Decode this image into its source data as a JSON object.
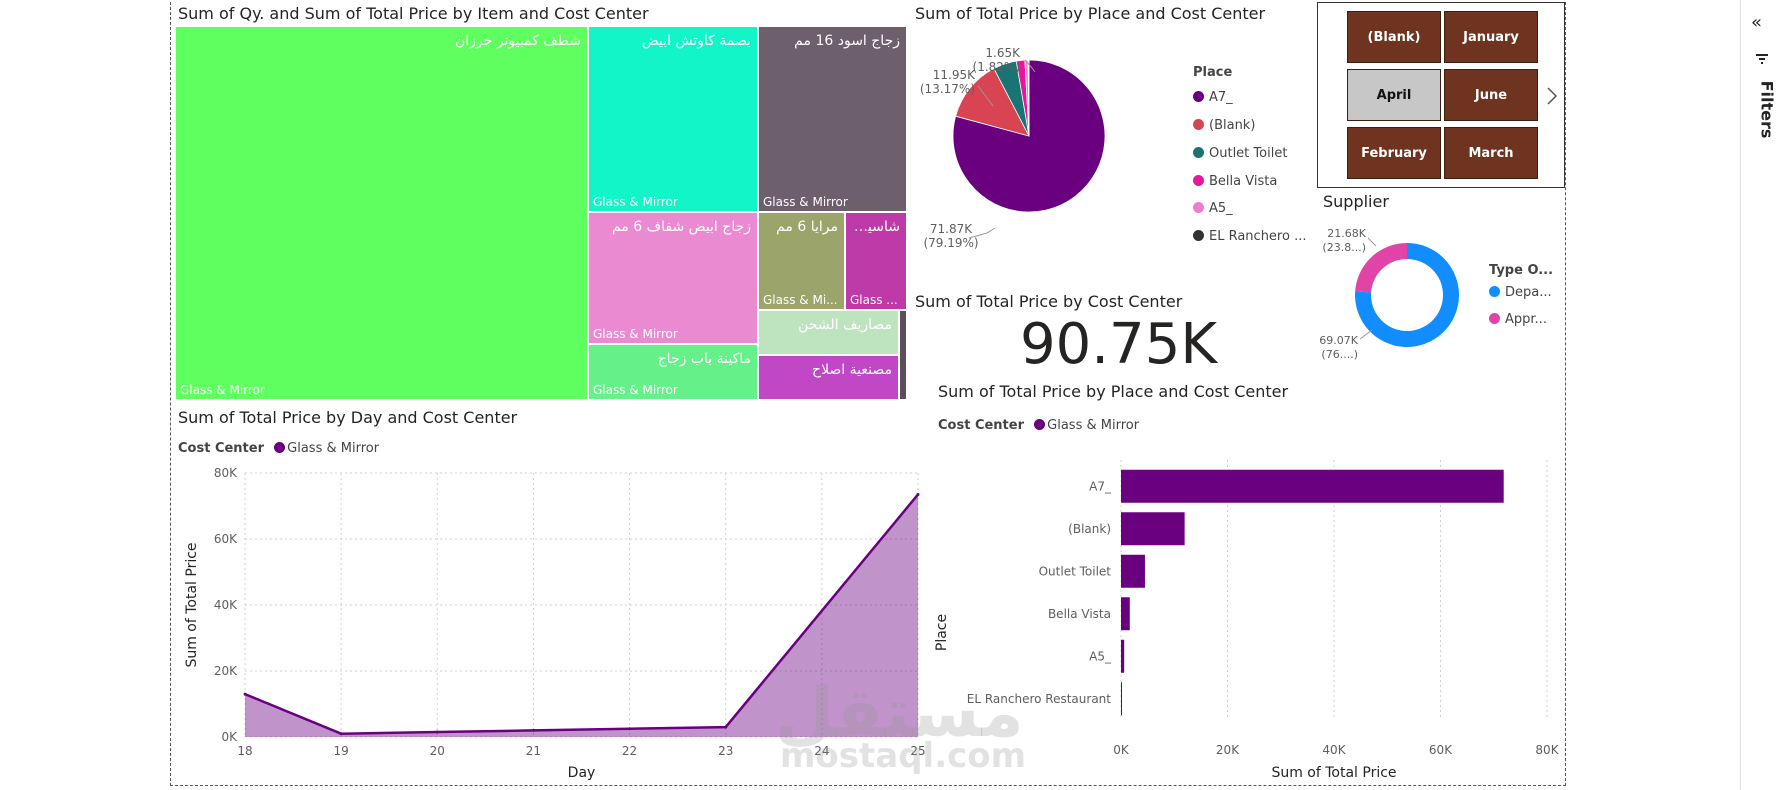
{
  "treemap": {
    "title": "Sum of Qy. and Sum of Total Price by Item and Cost Center",
    "tiles": [
      {
        "label": "شطف كمبيوتر خرزان",
        "sub": "Glass & Mirror",
        "color": "#5fff5f"
      },
      {
        "label": "بصمة كاوتش ابيض",
        "sub": "Glass & Mirror",
        "color": "#12f5c8"
      },
      {
        "label": "زجاج اسود 16 مم",
        "sub": "Glass & Mirror",
        "color": "#6d5f6c"
      },
      {
        "label": "زجاج ابيض شفاف 6 مم",
        "sub": "Glass & Mirror",
        "color": "#ea8bd2"
      },
      {
        "label": "مرايا 6 مم",
        "sub": "Glass & Mi...",
        "color": "#9ba46b"
      },
      {
        "label": "شاسيه...",
        "sub": "Glass ...",
        "color": "#bd3aa8"
      },
      {
        "label": "مصاريف الشحن",
        "sub": "",
        "color": "#bde4bf"
      },
      {
        "label": "ماكينة باب زجاج",
        "sub": "Glass & Mirror",
        "color": "#66f08a"
      },
      {
        "label": "مصنعية اصلاح",
        "sub": "",
        "color": "#c048c6"
      }
    ]
  },
  "pie": {
    "title": "Sum of Total Price by Place and Cost Center",
    "legend_title": "Place",
    "labels": [
      "1.65K",
      "(1.82%)",
      "11.95K",
      "(13.17%)",
      "71.87K",
      "(79.19%)"
    ],
    "items": [
      {
        "name": "A7_",
        "color": "#6a0080"
      },
      {
        "name": "(Blank)",
        "color": "#d94452"
      },
      {
        "name": "Outlet Toilet",
        "color": "#1a7474"
      },
      {
        "name": "Bella Vista",
        "color": "#e6179a"
      },
      {
        "name": "A5_",
        "color": "#f07cd0"
      },
      {
        "name": "EL Ranchero ...",
        "color": "#333333"
      }
    ]
  },
  "slicer": {
    "buttons": [
      {
        "label": "(Blank)",
        "selected": false
      },
      {
        "label": "January",
        "selected": false
      },
      {
        "label": "April",
        "selected": true
      },
      {
        "label": "June",
        "selected": false
      },
      {
        "label": "February",
        "selected": false
      },
      {
        "label": "March",
        "selected": false
      }
    ],
    "next_icon": "chevron-right-icon"
  },
  "donut": {
    "title": "Supplier",
    "legend_title": "Type O...",
    "legend": [
      {
        "name": "Depa...",
        "color": "#118dff"
      },
      {
        "name": "Appr...",
        "color": "#e044a7"
      }
    ],
    "label_top": [
      "21.68K",
      "(23.8...)"
    ],
    "label_bottom": [
      "69.07K",
      "(76....)"
    ]
  },
  "card": {
    "title": "Sum of Total Price by Cost Center",
    "value": "90.75K"
  },
  "line": {
    "title": "Sum of Total Price by Day and Cost Center",
    "legend_title": "Cost Center",
    "legend_item": "Glass & Mirror",
    "color": "#6a0080",
    "ylabel": "Sum of Total Price",
    "xlabel": "Day",
    "yticks": [
      "0K",
      "20K",
      "40K",
      "60K",
      "80K"
    ],
    "xticks": [
      "18",
      "19",
      "20",
      "21",
      "22",
      "23",
      "24",
      "25"
    ]
  },
  "bar": {
    "title": "Sum of Total Price by Place and Cost Center",
    "legend_title": "Cost Center",
    "legend_item": "Glass & Mirror",
    "color": "#6a0080",
    "ylabel": "Place",
    "xlabel": "Sum of Total Price",
    "xticks": [
      "0K",
      "20K",
      "40K",
      "60K",
      "80K"
    ]
  },
  "filters": {
    "label": "Filters",
    "collapse_icon": "double-chevron-left-icon",
    "pane_icon": "filter-pane-icon"
  },
  "watermark": {
    "text": "mostaql.com",
    "logo_text": "مستقل"
  },
  "chart_data": [
    {
      "type": "pie",
      "title": "Sum of Total Price by Place and Cost Center",
      "categories": [
        "A7_",
        "(Blank)",
        "Outlet Toilet",
        "Bella Vista",
        "A5_",
        "EL Ranchero ..."
      ],
      "values": [
        71.87,
        11.95,
        4.5,
        1.65,
        0.6,
        0.18
      ]
    },
    {
      "type": "pie",
      "title": "Supplier",
      "categories": [
        "Depa...",
        "Appr..."
      ],
      "values": [
        69.07,
        21.68
      ]
    },
    {
      "type": "area",
      "title": "Sum of Total Price by Day and Cost Center",
      "xlabel": "Day",
      "ylabel": "Sum of Total Price",
      "x": [
        18,
        19,
        20,
        21,
        22,
        23,
        24,
        25
      ],
      "series": [
        {
          "name": "Glass & Mirror",
          "values": [
            13,
            1,
            1.5,
            2,
            2.5,
            3,
            null,
            73.5
          ]
        }
      ],
      "ylim": [
        0,
        80
      ]
    },
    {
      "type": "bar",
      "title": "Sum of Total Price by Place and Cost Center",
      "xlabel": "Sum of Total Price",
      "ylabel": "Place",
      "categories": [
        "A7_",
        "(Blank)",
        "Outlet Toilet",
        "Bella Vista",
        "A5_",
        "EL Ranchero Restaurant"
      ],
      "series": [
        {
          "name": "Glass & Mirror",
          "values": [
            71.87,
            11.95,
            4.5,
            1.65,
            0.6,
            0.18
          ]
        }
      ],
      "xlim": [
        0,
        80
      ]
    }
  ]
}
